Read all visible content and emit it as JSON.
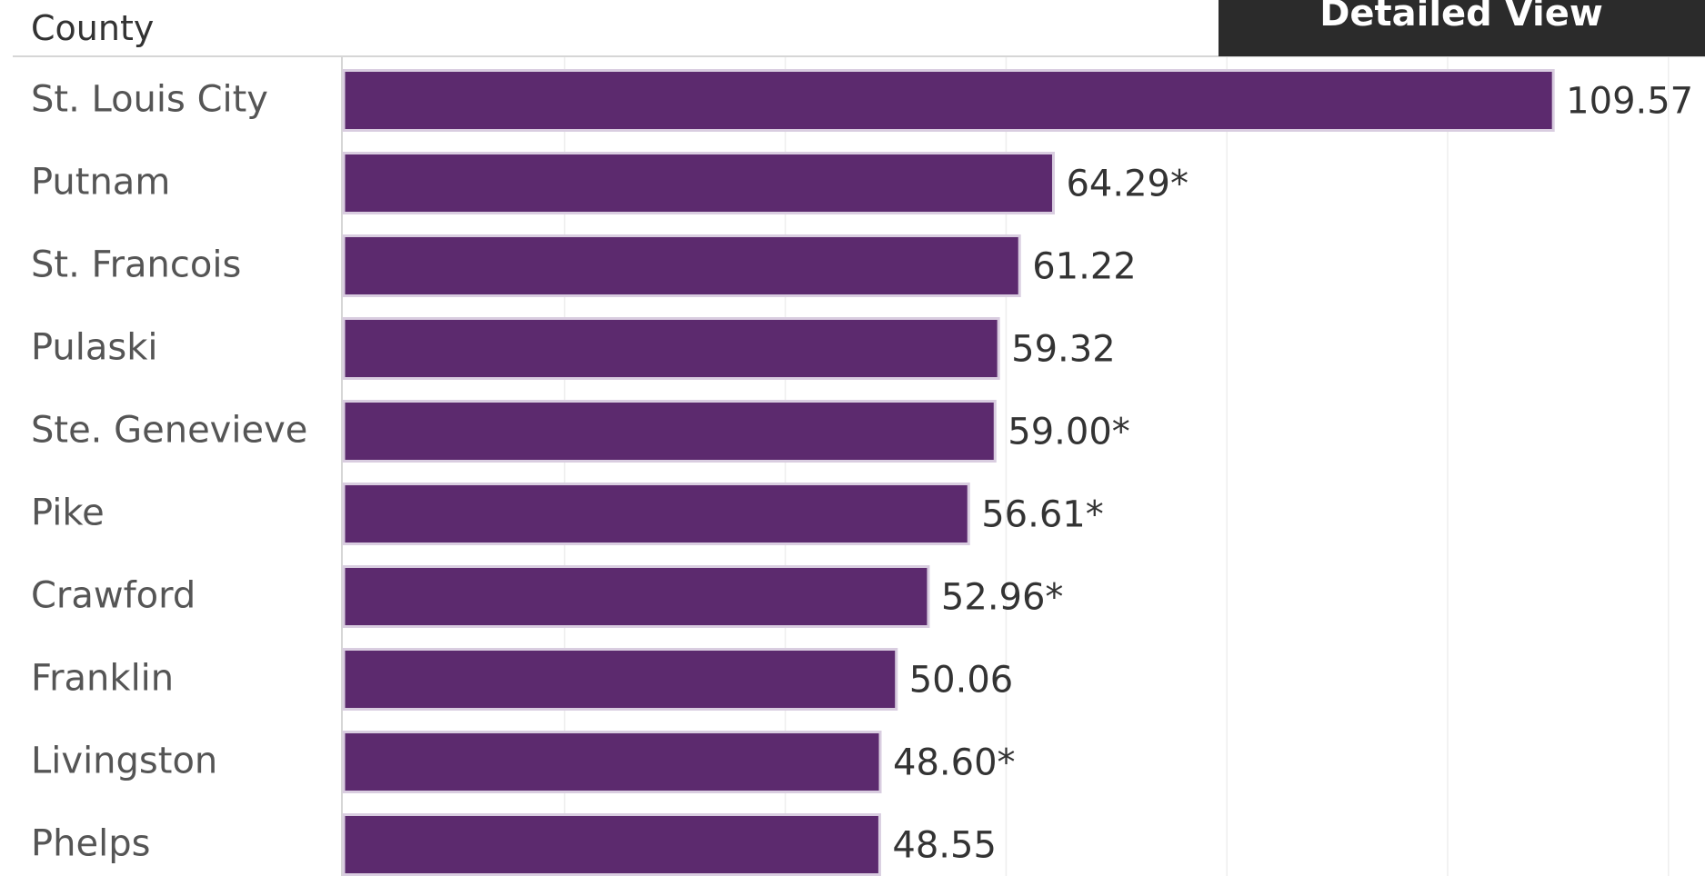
{
  "header": {
    "column_title": "County",
    "detail_button_label": "Detailed View"
  },
  "colors": {
    "bar": "#5c2a6e",
    "bar_outline": "#d9cde0",
    "button_bg": "#2b2b2b"
  },
  "chart_data": {
    "type": "bar",
    "orientation": "horizontal",
    "categories": [
      "St. Louis City",
      "Putnam",
      "St. Francois",
      "Pulaski",
      "Ste. Genevieve",
      "Pike",
      "Crawford",
      "Franklin",
      "Livingston",
      "Phelps"
    ],
    "values": [
      109.57,
      64.29,
      61.22,
      59.32,
      59.0,
      56.61,
      52.96,
      50.06,
      48.6,
      48.55
    ],
    "labels": [
      "109.57",
      "64.29*",
      "61.22",
      "59.32",
      "59.00*",
      "56.61*",
      "52.96*",
      "50.06",
      "48.60*",
      "48.55"
    ],
    "xlim": [
      0,
      120
    ],
    "grid": true
  }
}
